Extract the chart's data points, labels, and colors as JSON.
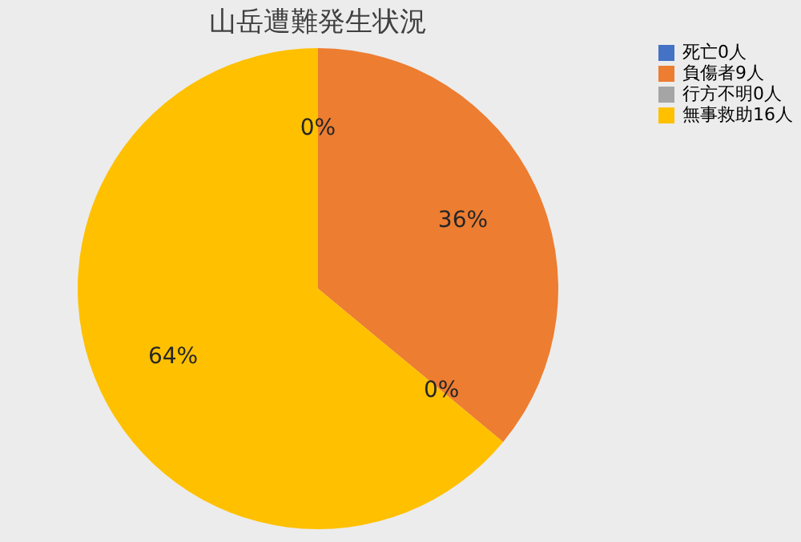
{
  "chart_data": {
    "type": "pie",
    "title": "山岳遭難発生状況",
    "categories": [
      "死亡0人",
      "負傷者9人",
      "行方不明0人",
      "無事救助16人"
    ],
    "values": [
      0,
      36,
      0,
      64
    ],
    "value_labels": [
      "0%",
      "36%",
      "0%",
      "64%"
    ],
    "colors": [
      "#4472c4",
      "#ed7d31",
      "#a5a5a5",
      "#ffc000"
    ],
    "legend": "right"
  }
}
